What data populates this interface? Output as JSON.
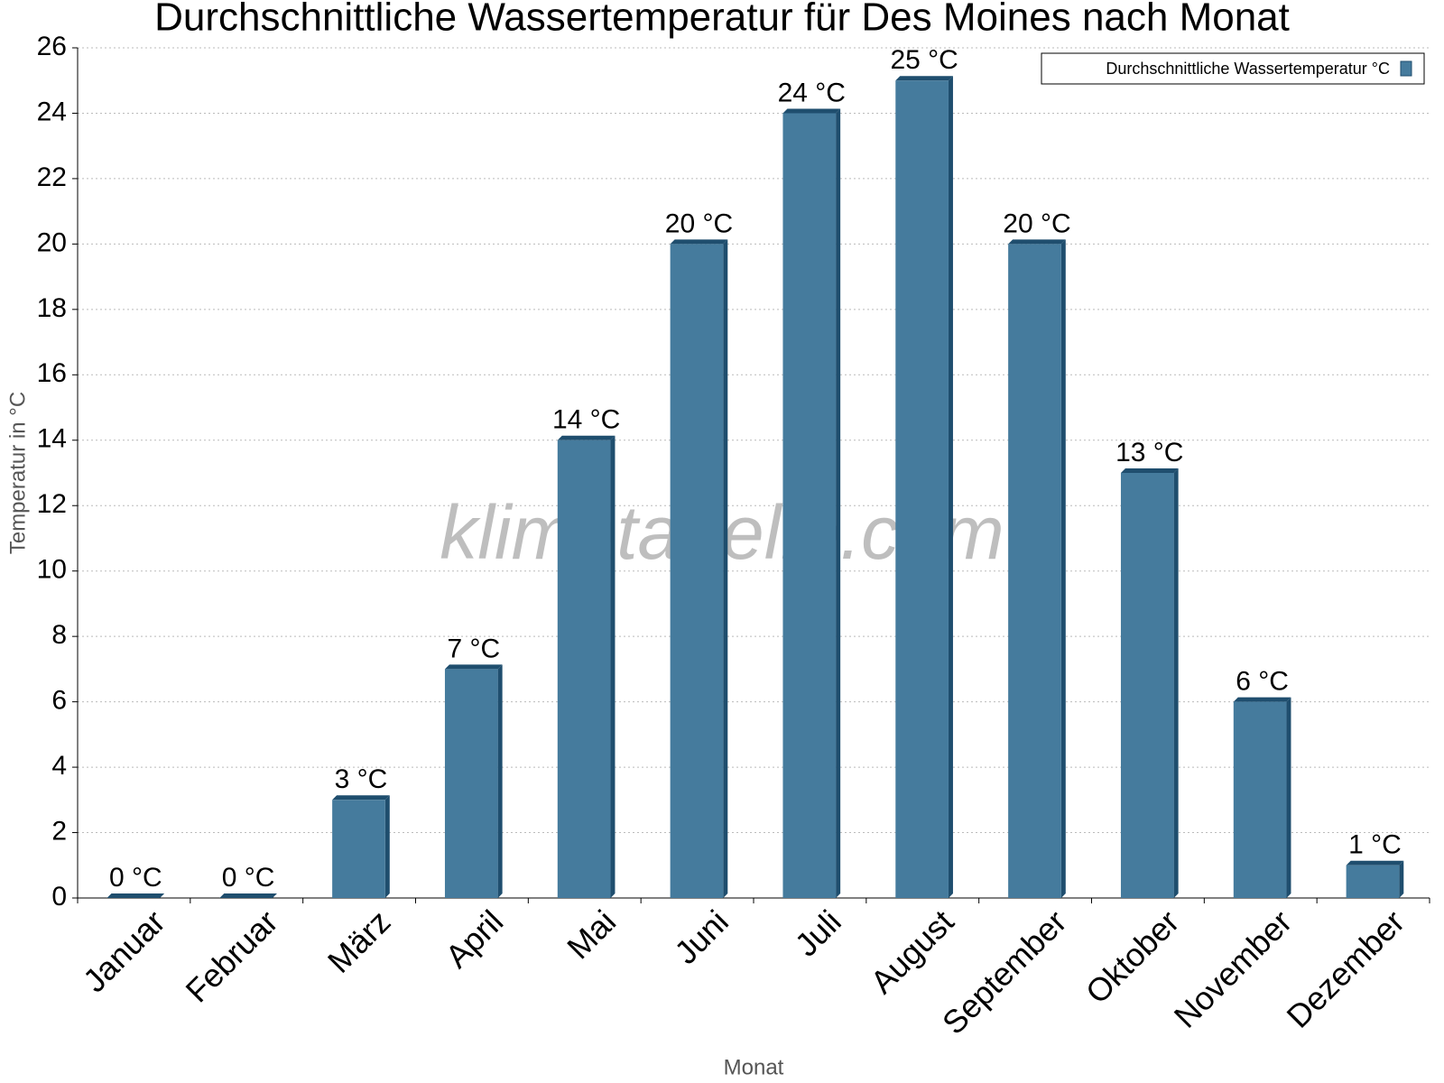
{
  "chart_data": {
    "type": "bar",
    "title": "Durchschnittliche Wassertemperatur für Des Moines nach Monat",
    "x_label": "Monat",
    "y_label": "Temperatur in °C",
    "watermark": "klimatabelle.com",
    "categories": [
      "Januar",
      "Februar",
      "März",
      "April",
      "Mai",
      "Juni",
      "Juli",
      "August",
      "September",
      "Oktober",
      "November",
      "Dezember"
    ],
    "series": [
      {
        "name": "Durchschnittliche Wassertemperatur °C",
        "color": "#457b9d",
        "values": [
          0,
          0,
          3,
          7,
          14,
          20,
          24,
          25,
          20,
          13,
          6,
          1
        ],
        "value_labels": [
          "0 °C",
          "0 °C",
          "3 °C",
          "7 °C",
          "14 °C",
          "20 °C",
          "24 °C",
          "25 °C",
          "20 °C",
          "13 °C",
          "6 °C",
          "1 °C"
        ]
      }
    ],
    "ylim": [
      0,
      26
    ],
    "yticks": [
      0,
      2,
      4,
      6,
      8,
      10,
      12,
      14,
      16,
      18,
      20,
      22,
      24,
      26
    ],
    "grid": true,
    "legend": "top-right"
  }
}
